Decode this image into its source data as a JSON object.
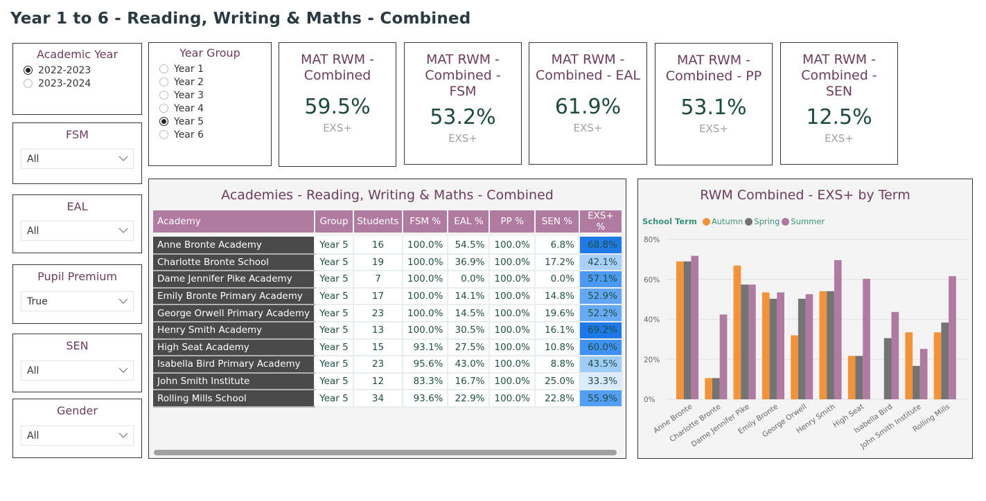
{
  "page_title": "Year 1 to 6  - Reading, Writing & Maths - Combined",
  "slicers": {
    "academic_year": {
      "title": "Academic Year",
      "options": [
        {
          "label": "2022-2023",
          "selected": true
        },
        {
          "label": "2023-2024",
          "selected": false
        }
      ]
    },
    "year_group": {
      "title": "Year Group",
      "options": [
        {
          "label": "Year 1",
          "selected": false
        },
        {
          "label": "Year 2",
          "selected": false
        },
        {
          "label": "Year 3",
          "selected": false
        },
        {
          "label": "Year 4",
          "selected": false
        },
        {
          "label": "Year 5",
          "selected": true
        },
        {
          "label": "Year 6",
          "selected": false
        }
      ]
    },
    "fsm": {
      "title": "FSM",
      "value": "All"
    },
    "eal": {
      "title": "EAL",
      "value": "All"
    },
    "pupil_premium": {
      "title": "Pupil Premium",
      "value": "True"
    },
    "sen": {
      "title": "SEN",
      "value": "All"
    },
    "gender": {
      "title": "Gender",
      "value": "All"
    }
  },
  "kpis": [
    {
      "title": "MAT RWM - Combined",
      "value": "59.5%",
      "sub": "EXS+"
    },
    {
      "title": "MAT RWM - Combined - FSM",
      "value": "53.2%",
      "sub": "EXS+"
    },
    {
      "title": "MAT RWM - Combined - EAL",
      "value": "61.9%",
      "sub": "EXS+"
    },
    {
      "title": "MAT RWM - Combined - PP",
      "value": "53.1%",
      "sub": "EXS+"
    },
    {
      "title": "MAT RWM - Combined - SEN",
      "value": "12.5%",
      "sub": "EXS+"
    }
  ],
  "table": {
    "title": "Academies - Reading, Writing & Maths - Combined",
    "columns": [
      "Academy",
      "Group",
      "Students",
      "FSM %",
      "EAL %",
      "PP %",
      "SEN %",
      "EXS+ %"
    ],
    "rows": [
      {
        "academy": "Anne Bronte Academy",
        "group": "Year 5",
        "students": "16",
        "fsm": "100.0%",
        "eal": "54.5%",
        "pp": "100.0%",
        "sen": "6.8%",
        "exs": "68.8%",
        "exs_color": "#1f7ae8"
      },
      {
        "academy": "Charlotte Bronte School",
        "group": "Year 5",
        "students": "19",
        "fsm": "100.0%",
        "eal": "36.9%",
        "pp": "100.0%",
        "sen": "17.2%",
        "exs": "42.1%",
        "exs_color": "#a8d0fb"
      },
      {
        "academy": "Dame Jennifer Pike Academy",
        "group": "Year 5",
        "students": "7",
        "fsm": "100.0%",
        "eal": "0.0%",
        "pp": "100.0%",
        "sen": "0.0%",
        "exs": "57.1%",
        "exs_color": "#4c9af3"
      },
      {
        "academy": "Emily Bronte Primary Academy",
        "group": "Year 5",
        "students": "17",
        "fsm": "100.0%",
        "eal": "14.1%",
        "pp": "100.0%",
        "sen": "14.8%",
        "exs": "52.9%",
        "exs_color": "#62a7f5"
      },
      {
        "academy": "George Orwell Primary Academy",
        "group": "Year 5",
        "students": "23",
        "fsm": "100.0%",
        "eal": "14.5%",
        "pp": "100.0%",
        "sen": "19.6%",
        "exs": "52.2%",
        "exs_color": "#66a9f5"
      },
      {
        "academy": "Henry Smith Academy",
        "group": "Year 5",
        "students": "13",
        "fsm": "100.0%",
        "eal": "30.5%",
        "pp": "100.0%",
        "sen": "16.1%",
        "exs": "69.2%",
        "exs_color": "#1d78e8"
      },
      {
        "academy": "High Seat Academy",
        "group": "Year 5",
        "students": "15",
        "fsm": "93.1%",
        "eal": "27.5%",
        "pp": "100.0%",
        "sen": "10.8%",
        "exs": "60.0%",
        "exs_color": "#3f92f1"
      },
      {
        "academy": "Isabella Bird Primary Academy",
        "group": "Year 5",
        "students": "23",
        "fsm": "95.6%",
        "eal": "43.0%",
        "pp": "100.0%",
        "sen": "8.8%",
        "exs": "43.5%",
        "exs_color": "#a0ccfa"
      },
      {
        "academy": "John Smith Institute",
        "group": "Year 5",
        "students": "12",
        "fsm": "83.3%",
        "eal": "16.7%",
        "pp": "100.0%",
        "sen": "25.0%",
        "exs": "33.3%",
        "exs_color": "#dceafd"
      },
      {
        "academy": "Rolling Mills School",
        "group": "Year 5",
        "students": "34",
        "fsm": "93.6%",
        "eal": "22.9%",
        "pp": "100.0%",
        "sen": "22.8%",
        "exs": "55.9%",
        "exs_color": "#529ef4"
      }
    ]
  },
  "chart_data": {
    "type": "bar",
    "title": "RWM Combined - EXS+ by Term",
    "legend_title": "School Term",
    "legend_position": "top-left",
    "categories": [
      "Anne Bronte",
      "Charlotte Bronte",
      "Dame Jennifer Pike",
      "Emily Bronte",
      "George Orwell",
      "Henry Smith",
      "High Seat",
      "Isabella Bird",
      "John Smith Institute",
      "Rolling Mills"
    ],
    "series": [
      {
        "name": "Autumn",
        "color": "#f2933a",
        "values": [
          69.0,
          10.6,
          66.9,
          53.5,
          32.0,
          54.1,
          21.7,
          null,
          33.5,
          33.5
        ]
      },
      {
        "name": "Spring",
        "color": "#737373",
        "values": [
          69.0,
          10.6,
          57.4,
          50.3,
          50.3,
          54.1,
          21.7,
          30.6,
          16.7,
          38.4
        ]
      },
      {
        "name": "Summer",
        "color": "#b07aa1",
        "values": [
          71.8,
          42.4,
          57.4,
          53.5,
          52.6,
          69.6,
          60.3,
          43.7,
          25.2,
          61.6
        ]
      }
    ],
    "ylim": [
      0,
      80
    ],
    "yticks": [
      0,
      20,
      40,
      60,
      80
    ],
    "ytick_labels": [
      "0%",
      "20%",
      "40%",
      "60%",
      "80%"
    ],
    "grid": true,
    "xlabel": "",
    "ylabel": ""
  }
}
